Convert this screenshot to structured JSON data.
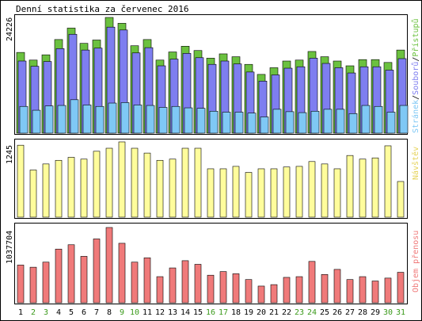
{
  "title": "Denní statistika za červenec 2016",
  "colors": {
    "background": "#ffffff",
    "panel": "#ffffff",
    "frame": "#000000",
    "hits": "#6bc13f",
    "files": "#7e7ef0",
    "pages": "#7fc8f5",
    "visits": "#fffd9c",
    "kbytes": "#f07a7a",
    "weekday_tick": "#000000",
    "weekend_tick": "#3a9a1a"
  },
  "panels": {
    "top": {
      "ymax_label": "24226",
      "legend": [
        {
          "text": "Stránek",
          "color": "#7fc8f5"
        },
        {
          "text": "/",
          "color": "#000000"
        },
        {
          "text": "Souborů",
          "color": "#7e7ef0"
        },
        {
          "text": "/",
          "color": "#000000"
        },
        {
          "text": "Přístupů",
          "color": "#6bc13f"
        }
      ]
    },
    "middle": {
      "ymax_label": "1245",
      "legend": [
        {
          "text": "Návštěv",
          "color": "#e6d35a"
        }
      ]
    },
    "bottom": {
      "ymax_label": "1037704",
      "legend": [
        {
          "text": "Objem přenosu",
          "color": "#f07a7a"
        }
      ]
    }
  },
  "chart_data": [
    {
      "type": "bar",
      "categories": [
        "1",
        "2",
        "3",
        "4",
        "5",
        "6",
        "7",
        "8",
        "9",
        "10",
        "11",
        "12",
        "13",
        "14",
        "15",
        "16",
        "17",
        "18",
        "19",
        "20",
        "21",
        "22",
        "23",
        "24",
        "25",
        "26",
        "27",
        "28",
        "29",
        "30",
        "31"
      ],
      "weekend_days": [
        "2",
        "3",
        "9",
        "10",
        "16",
        "17",
        "23",
        "24",
        "30",
        "31"
      ],
      "ylim": [
        0,
        24226
      ],
      "series": [
        {
          "name": "Přístupů",
          "values": [
            16900,
            15300,
            16400,
            19600,
            22000,
            18800,
            19500,
            24226,
            23000,
            18300,
            19600,
            15300,
            17000,
            18200,
            17300,
            15700,
            16600,
            16000,
            14400,
            12300,
            13700,
            15100,
            15300,
            17100,
            16000,
            15100,
            14100,
            15400,
            15400,
            14800,
            17400
          ]
        },
        {
          "name": "Souborů",
          "values": [
            15100,
            14000,
            15000,
            17700,
            20700,
            17400,
            17800,
            22200,
            21600,
            16800,
            17900,
            14100,
            15500,
            16700,
            15800,
            14400,
            15100,
            14500,
            12800,
            10900,
            12200,
            13600,
            13900,
            15700,
            14600,
            13700,
            12600,
            13900,
            13900,
            13200,
            15600
          ]
        },
        {
          "name": "Stránek",
          "values": [
            5600,
            4800,
            5700,
            5800,
            7000,
            5900,
            5600,
            6300,
            6400,
            5900,
            5800,
            5400,
            5600,
            5300,
            5200,
            4600,
            4400,
            4400,
            4200,
            3400,
            5000,
            4500,
            4300,
            4600,
            5000,
            5000,
            4100,
            5800,
            5600,
            4400,
            5800
          ]
        }
      ]
    },
    {
      "type": "bar",
      "categories": [
        "1",
        "2",
        "3",
        "4",
        "5",
        "6",
        "7",
        "8",
        "9",
        "10",
        "11",
        "12",
        "13",
        "14",
        "15",
        "16",
        "17",
        "18",
        "19",
        "20",
        "21",
        "22",
        "23",
        "24",
        "25",
        "26",
        "27",
        "28",
        "29",
        "30",
        "31"
      ],
      "ylim": [
        0,
        1245
      ],
      "series": [
        {
          "name": "Návštěv",
          "values": [
            1190,
            780,
            880,
            940,
            990,
            960,
            1090,
            1140,
            1245,
            1140,
            1060,
            940,
            960,
            1140,
            1140,
            800,
            800,
            840,
            740,
            800,
            800,
            830,
            840,
            920,
            880,
            800,
            1020,
            960,
            980,
            1180,
            590
          ]
        }
      ]
    },
    {
      "type": "bar",
      "categories": [
        "1",
        "2",
        "3",
        "4",
        "5",
        "6",
        "7",
        "8",
        "9",
        "10",
        "11",
        "12",
        "13",
        "14",
        "15",
        "16",
        "17",
        "18",
        "19",
        "20",
        "21",
        "22",
        "23",
        "24",
        "25",
        "26",
        "27",
        "28",
        "29",
        "30",
        "31"
      ],
      "ylim": [
        0,
        1037704
      ],
      "series": [
        {
          "name": "Objem přenosu",
          "values": [
            520000,
            490000,
            560000,
            740000,
            800000,
            640000,
            880000,
            1037704,
            820000,
            560000,
            620000,
            360000,
            480000,
            580000,
            530000,
            380000,
            430000,
            400000,
            320000,
            230000,
            250000,
            350000,
            360000,
            570000,
            390000,
            460000,
            320000,
            360000,
            300000,
            340000,
            420000
          ]
        }
      ]
    }
  ]
}
